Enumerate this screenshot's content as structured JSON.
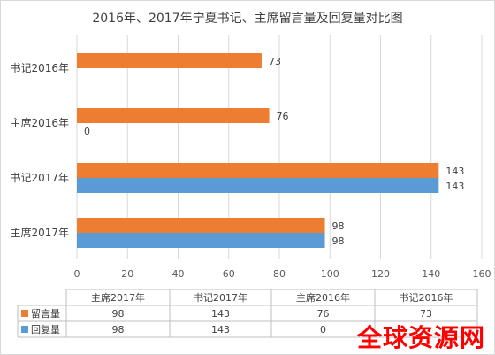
{
  "watermark": "全球资源网",
  "chart_data": {
    "type": "bar",
    "orientation": "horizontal",
    "title": "2016年、2017年宁夏书记、主席留言量及回复量对比图",
    "categories": [
      "主席2017年",
      "书记2017年",
      "主席2016年",
      "书记2016年"
    ],
    "series": [
      {
        "name": "留言量",
        "color": "#ed7d31",
        "values": [
          98,
          143,
          76,
          73
        ]
      },
      {
        "name": "回复量",
        "color": "#5b9bd5",
        "values": [
          98,
          143,
          0,
          null
        ]
      }
    ],
    "xlim": [
      0,
      160
    ],
    "xticks": [
      0,
      20,
      40,
      60,
      80,
      100,
      120,
      140,
      160
    ],
    "grid": true,
    "data_table": true,
    "table_rows": [
      {
        "name": "留言量",
        "color": "#ed7d31",
        "cells": [
          "98",
          "143",
          "76",
          "73"
        ]
      },
      {
        "name": "回复量",
        "color": "#5b9bd5",
        "cells": [
          "98",
          "143",
          "0",
          ""
        ]
      }
    ]
  }
}
